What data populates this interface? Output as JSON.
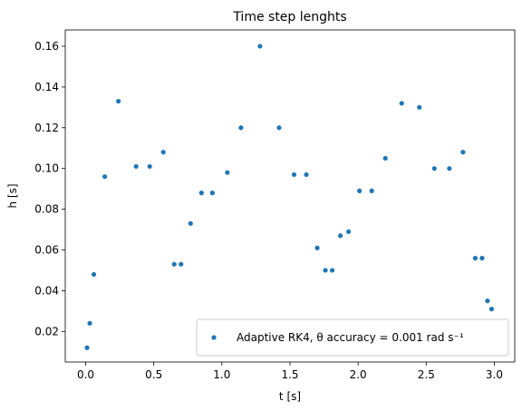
{
  "chart_data": {
    "type": "scatter",
    "title": "Time step lenghts",
    "xlabel": "t [s]",
    "ylabel": "h [s]",
    "xlim": [
      -0.15,
      3.15
    ],
    "ylim": [
      0.005,
      0.168
    ],
    "xticks": [
      0.0,
      0.5,
      1.0,
      1.5,
      2.0,
      2.5,
      3.0
    ],
    "xtick_labels": [
      "0.0",
      "0.5",
      "1.0",
      "1.5",
      "2.0",
      "2.5",
      "3.0"
    ],
    "yticks": [
      0.02,
      0.04,
      0.06,
      0.08,
      0.1,
      0.12,
      0.14,
      0.16
    ],
    "ytick_labels": [
      "0.02",
      "0.04",
      "0.06",
      "0.08",
      "0.10",
      "0.12",
      "0.14",
      "0.16"
    ],
    "grid": false,
    "legend_position": "lower-right",
    "series": [
      {
        "name": "Adaptive RK4, θ accuracy = 0.001 rad s⁻¹",
        "color": "#1f77b4",
        "points": [
          [
            0.01,
            0.012
          ],
          [
            0.03,
            0.024
          ],
          [
            0.06,
            0.048
          ],
          [
            0.14,
            0.096
          ],
          [
            0.24,
            0.133
          ],
          [
            0.37,
            0.101
          ],
          [
            0.47,
            0.101
          ],
          [
            0.57,
            0.108
          ],
          [
            0.65,
            0.053
          ],
          [
            0.7,
            0.053
          ],
          [
            0.77,
            0.073
          ],
          [
            0.85,
            0.088
          ],
          [
            0.93,
            0.088
          ],
          [
            1.04,
            0.098
          ],
          [
            1.14,
            0.12
          ],
          [
            1.28,
            0.16
          ],
          [
            1.42,
            0.12
          ],
          [
            1.53,
            0.097
          ],
          [
            1.62,
            0.097
          ],
          [
            1.7,
            0.061
          ],
          [
            1.76,
            0.05
          ],
          [
            1.81,
            0.05
          ],
          [
            1.87,
            0.067
          ],
          [
            1.93,
            0.069
          ],
          [
            2.01,
            0.089
          ],
          [
            2.1,
            0.089
          ],
          [
            2.2,
            0.105
          ],
          [
            2.32,
            0.132
          ],
          [
            2.45,
            0.13
          ],
          [
            2.56,
            0.1
          ],
          [
            2.67,
            0.1
          ],
          [
            2.77,
            0.108
          ],
          [
            2.86,
            0.056
          ],
          [
            2.91,
            0.056
          ],
          [
            2.95,
            0.035
          ],
          [
            2.98,
            0.031
          ]
        ]
      }
    ]
  }
}
